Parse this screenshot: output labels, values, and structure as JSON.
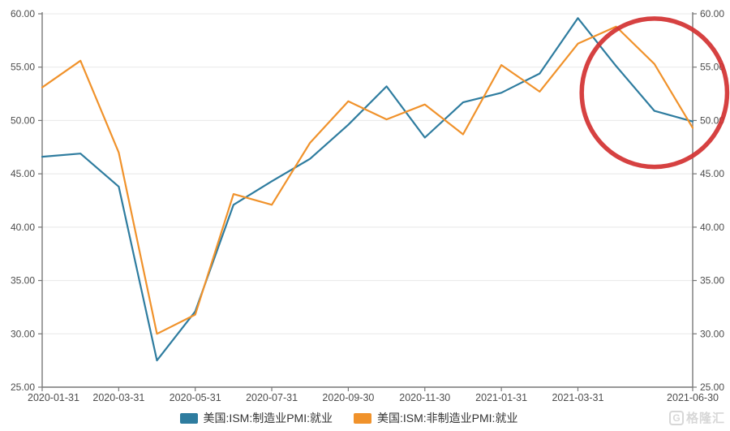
{
  "chart_data": {
    "type": "line",
    "title": "",
    "x": [
      "2020-01-31",
      "2020-02-29",
      "2020-03-31",
      "2020-04-30",
      "2020-05-31",
      "2020-06-30",
      "2020-07-31",
      "2020-08-31",
      "2020-09-30",
      "2020-10-31",
      "2020-11-30",
      "2020-12-31",
      "2021-01-31",
      "2021-02-28",
      "2021-03-31",
      "2021-04-30",
      "2021-05-31",
      "2021-06-30"
    ],
    "x_tick_indices": [
      0,
      2,
      4,
      6,
      8,
      10,
      12,
      14,
      17
    ],
    "x_tick_labels": [
      "2020-01-31",
      "2020-03-31",
      "2020-05-31",
      "2020-07-31",
      "2020-09-30",
      "2020-11-30",
      "2021-01-31",
      "2021-03-31",
      "2021-06-30"
    ],
    "ylim": [
      25,
      60
    ],
    "y_ticks": [
      25,
      30,
      35,
      40,
      45,
      50,
      55,
      60
    ],
    "y_tick_labels": [
      "25.00",
      "30.00",
      "35.00",
      "40.00",
      "45.00",
      "50.00",
      "55.00",
      "60.00"
    ],
    "dual_y_axis": true,
    "grid": true,
    "legend_position": "bottom",
    "series": [
      {
        "name": "美国:ISM:制造业PMI:就业",
        "color": "#2e7c9f",
        "values": [
          46.6,
          46.9,
          43.8,
          27.5,
          32.1,
          42.1,
          44.3,
          46.4,
          49.6,
          53.2,
          48.4,
          51.7,
          52.6,
          54.4,
          59.6,
          55.1,
          50.9,
          49.9
        ]
      },
      {
        "name": "美国:ISM:非制造业PMI:就业",
        "color": "#f0922b",
        "values": [
          53.1,
          55.6,
          47.0,
          30.0,
          31.8,
          43.1,
          42.1,
          47.9,
          51.8,
          50.1,
          51.5,
          48.7,
          55.2,
          52.7,
          57.2,
          58.8,
          55.3,
          49.3
        ]
      }
    ],
    "annotation": {
      "type": "ellipse-highlight",
      "color": "#d23131",
      "center_index": 16.0,
      "center_value": 52.6,
      "radius_index": 1.9,
      "radius_value": 6.95,
      "note": "red circle highlighting the recent decline of both PMI employment indices"
    }
  },
  "colors": {
    "axis_line": "#777777",
    "grid_line": "#e8e8e8",
    "tick_text": "#4c4c4c"
  },
  "watermark": {
    "logo_text": "G",
    "brand_text": "格隆汇"
  }
}
